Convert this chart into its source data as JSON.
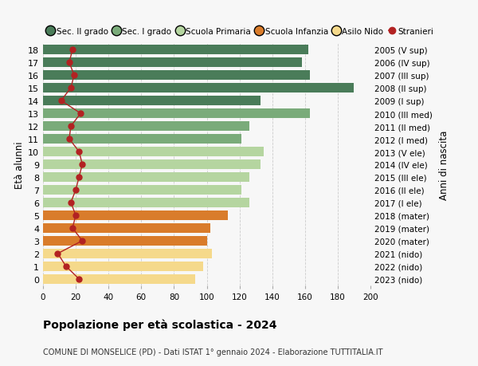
{
  "ages": [
    18,
    17,
    16,
    15,
    14,
    13,
    12,
    11,
    10,
    9,
    8,
    7,
    6,
    5,
    4,
    3,
    2,
    1,
    0
  ],
  "years": [
    "2005 (V sup)",
    "2006 (IV sup)",
    "2007 (III sup)",
    "2008 (II sup)",
    "2009 (I sup)",
    "2010 (III med)",
    "2011 (II med)",
    "2012 (I med)",
    "2013 (V ele)",
    "2014 (IV ele)",
    "2015 (III ele)",
    "2016 (II ele)",
    "2017 (I ele)",
    "2018 (mater)",
    "2019 (mater)",
    "2020 (mater)",
    "2021 (nido)",
    "2022 (nido)",
    "2023 (nido)"
  ],
  "values": [
    162,
    158,
    163,
    190,
    133,
    163,
    126,
    121,
    135,
    133,
    126,
    121,
    126,
    113,
    102,
    100,
    103,
    98,
    93
  ],
  "stranieri": [
    18,
    16,
    19,
    17,
    11,
    23,
    17,
    16,
    22,
    24,
    22,
    20,
    17,
    20,
    18,
    24,
    9,
    14,
    22
  ],
  "bar_colors": [
    "#4a7c59",
    "#4a7c59",
    "#4a7c59",
    "#4a7c59",
    "#4a7c59",
    "#7aab7a",
    "#7aab7a",
    "#7aab7a",
    "#b5d5a0",
    "#b5d5a0",
    "#b5d5a0",
    "#b5d5a0",
    "#b5d5a0",
    "#d97c2b",
    "#d97c2b",
    "#d97c2b",
    "#f5d98b",
    "#f5d98b",
    "#f5d98b"
  ],
  "legend_labels": [
    "Sec. II grado",
    "Sec. I grado",
    "Scuola Primaria",
    "Scuola Infanzia",
    "Asilo Nido",
    "Stranieri"
  ],
  "legend_colors": [
    "#4a7c59",
    "#7aab7a",
    "#b5d5a0",
    "#d97c2b",
    "#f5d98b",
    "#b22222"
  ],
  "stranieri_color": "#b22222",
  "title_bold": "Popolazione per età scolastica - 2024",
  "subtitle": "COMUNE DI MONSELICE (PD) - Dati ISTAT 1° gennaio 2024 - Elaborazione TUTTITALIA.IT",
  "ylabel_left": "Età alunni",
  "ylabel_right": "Anni di nascita",
  "xlim": [
    0,
    200
  ],
  "xticks": [
    0,
    20,
    40,
    60,
    80,
    100,
    120,
    140,
    160,
    180,
    200
  ],
  "bg_color": "#f7f7f7",
  "grid_color": "#cccccc"
}
